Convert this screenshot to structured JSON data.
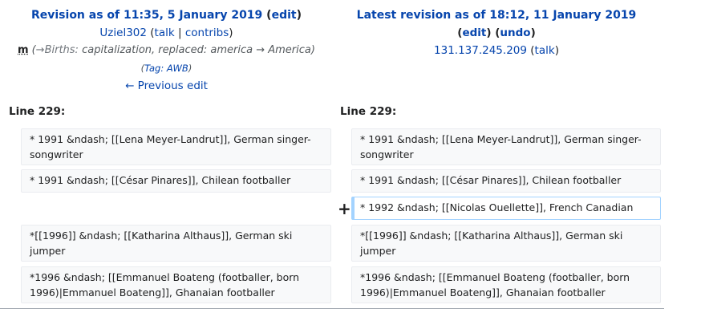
{
  "left_header": {
    "title_prefix": "Revision as of 11:35, 5 January 2019",
    "edit_link": "edit",
    "user": "Uziel302",
    "talk": "talk",
    "contribs": "contribs",
    "minor": "m",
    "summary_section": "→Births:",
    "summary_text": "capitalization, replaced: america →  America",
    "tag_label": "Tag:",
    "tag_value": "AWB",
    "prev_edit": "← Previous edit"
  },
  "right_header": {
    "title": "Latest revision as of 18:12, 11 January 2019",
    "edit_link": "edit",
    "undo_link": "undo",
    "user": "131.137.245.209",
    "talk": "talk"
  },
  "left_line": "Line 229:",
  "right_line": "Line 229:",
  "added_marker": "+",
  "left_rows": [
    "* 1991   &ndash; [[Lena Meyer-Landrut]], German singer-songwriter",
    "* 1991   &ndash; [[César Pinares]], Chilean footballer",
    "*[[1996]] &ndash; [[Katharina Althaus]], German ski jumper",
    "*1996    &ndash; [[Emmanuel Boateng (footballer, born 1996)|Emmanuel Boateng]], Ghanaian footballer"
  ],
  "right_rows": [
    "* 1991   &ndash; [[Lena Meyer-Landrut]], German singer-songwriter",
    "* 1991   &ndash; [[César Pinares]], Chilean footballer",
    "* 1992   &ndash; [[Nicolas Ouellette]], French Canadian",
    "*[[1996]] &ndash; [[Katharina Althaus]], German ski jumper",
    "*1996    &ndash; [[Emmanuel Boateng (footballer, born 1996)|Emmanuel Boateng]], Ghanaian footballer"
  ]
}
